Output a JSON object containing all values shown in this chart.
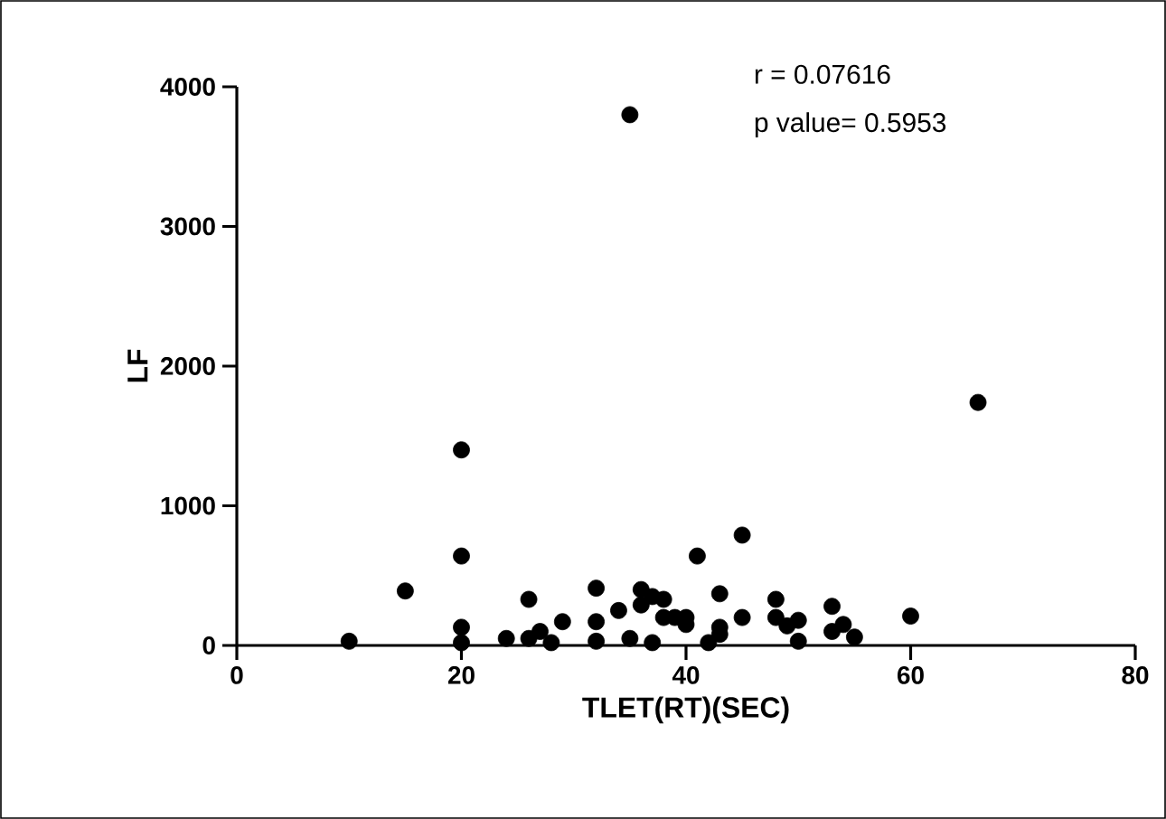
{
  "chart_data": {
    "type": "scatter",
    "xlabel": "TLET(RT)(SEC)",
    "ylabel": "LF",
    "xlim": [
      0,
      80
    ],
    "ylim": [
      0,
      4000
    ],
    "xticks": [
      0,
      20,
      40,
      60,
      80
    ],
    "yticks": [
      0,
      1000,
      2000,
      3000,
      4000
    ],
    "marker": "circle",
    "grid": false,
    "annotations": [
      "r = 0.07616",
      "p value= 0.5953"
    ],
    "series": [
      {
        "color": "#000000",
        "x": [
          10,
          15,
          20,
          20,
          20,
          20,
          24,
          26,
          26,
          27,
          28,
          29,
          32,
          32,
          32,
          34,
          35,
          35,
          36,
          36,
          37,
          37,
          38,
          38,
          39,
          40,
          40,
          41,
          42,
          43,
          43,
          43,
          45,
          45,
          48,
          48,
          49,
          50,
          50,
          53,
          53,
          54,
          55,
          60,
          66
        ],
        "values": [
          30,
          390,
          1400,
          640,
          130,
          20,
          50,
          330,
          50,
          100,
          20,
          170,
          410,
          170,
          30,
          250,
          3800,
          50,
          400,
          290,
          350,
          20,
          330,
          200,
          200,
          150,
          200,
          640,
          20,
          370,
          130,
          80,
          790,
          200,
          330,
          200,
          140,
          180,
          30,
          280,
          100,
          150,
          60,
          210,
          1740
        ]
      }
    ]
  }
}
